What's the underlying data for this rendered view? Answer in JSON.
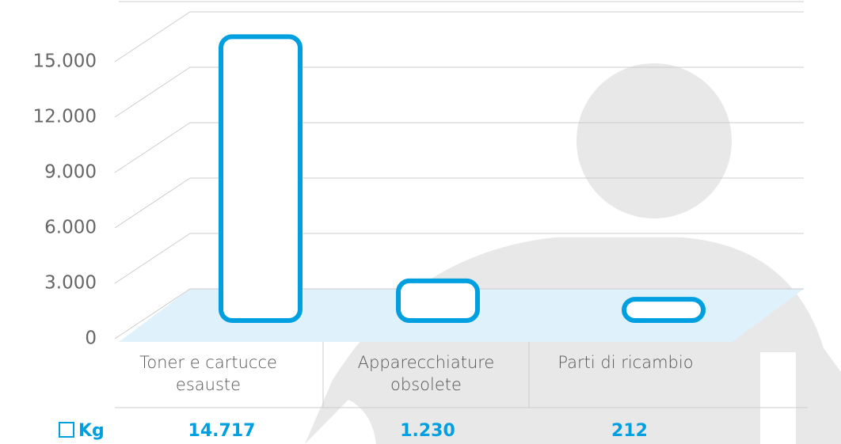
{
  "chart_data": {
    "type": "bar3d",
    "categories": [
      "Toner e cartucce esauste",
      "Apparecchiature obsolete",
      "Parti di ricambio"
    ],
    "series": [
      {
        "name": "Kg",
        "color": "#00a0e0",
        "values": [
          14717,
          1230,
          212
        ],
        "value_labels": [
          "14.717",
          "1.230",
          "212"
        ]
      }
    ],
    "ylim": [
      0,
      18000
    ],
    "yticks": [
      0,
      {
        "value": 3000,
        "label": "3.000"
      },
      {
        "value": 6000,
        "label": "6.000"
      },
      {
        "value": 9000,
        "label": "9.000"
      },
      {
        "value": 12000,
        "label": "12.000"
      },
      {
        "value": 15000,
        "label": "15.000"
      }
    ],
    "grid": true
  }
}
